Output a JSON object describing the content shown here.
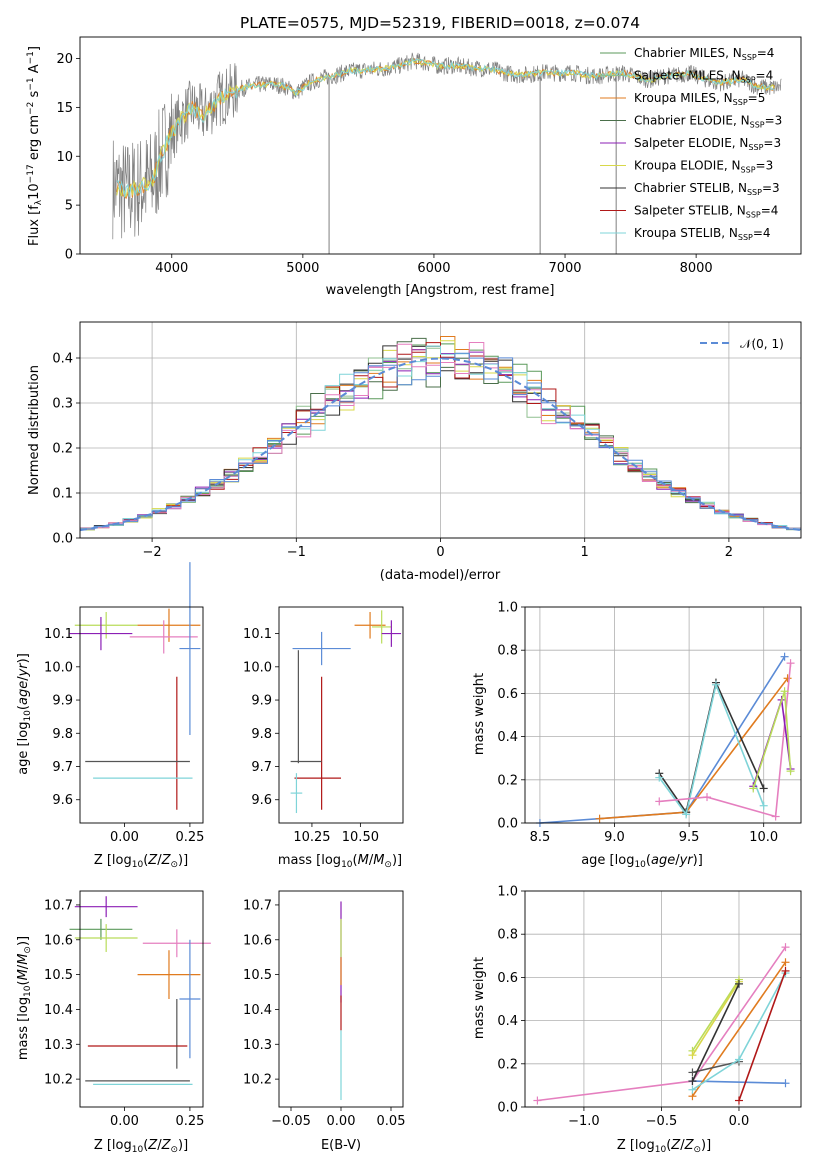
{
  "chart_data": [
    {
      "type": "line",
      "title": "PLATE=0575, MJD=52319, FIBERID=0018, z=0.074",
      "xlabel": "wavelength [Angstrom, rest frame]",
      "ylabel": "Flux [f$_\\lambda$10$^{-17}$ erg cm$^{-2}$ s$^{-1}$ A$^{-1}$]",
      "ylabel_parts": [
        "Flux [f",
        "λ",
        "10",
        "−17",
        " erg cm",
        "−2",
        " s",
        "−1",
        " A",
        "−1",
        "]"
      ],
      "xlim": [
        3300,
        8800
      ],
      "ylim": [
        0,
        22.2
      ],
      "xticks": [
        4000,
        5000,
        6000,
        7000,
        8000
      ],
      "yticks": [
        0,
        5,
        10,
        15,
        20
      ],
      "legend_position": "upper right",
      "legend": [
        {
          "main": "Chabrier MILES, N",
          "sub": "SSP",
          "tail": "=4",
          "color": "#5b9a5b"
        },
        {
          "main": "Salpeter MILES, N",
          "sub": "SSP",
          "tail": "=4",
          "color": "#8fbf8f"
        },
        {
          "main": "Kroupa MILES, N",
          "sub": "SSP",
          "tail": "=5",
          "color": "#e07b1f"
        },
        {
          "main": "Chabrier ELODIE, N",
          "sub": "SSP",
          "tail": "=3",
          "color": "#4a6f4a"
        },
        {
          "main": "Salpeter ELODIE, N",
          "sub": "SSP",
          "tail": "=3",
          "color": "#8b1fb5"
        },
        {
          "main": "Kroupa ELODIE, N",
          "sub": "SSP",
          "tail": "=3",
          "color": "#d8d84a"
        },
        {
          "main": "Chabrier STELIB, N",
          "sub": "SSP",
          "tail": "=3",
          "color": "#333333"
        },
        {
          "main": "Salpeter STELIB, N",
          "sub": "SSP",
          "tail": "=4",
          "color": "#b01818"
        },
        {
          "main": "Kroupa STELIB, N",
          "sub": "SSP",
          "tail": "=4",
          "color": "#7fd4d8"
        }
      ],
      "spectrum_envelope": {
        "x": [
          3550,
          3650,
          3750,
          3850,
          3950,
          4050,
          4150,
          4250,
          4350,
          4450,
          4550,
          4650,
          4750,
          4850,
          4950,
          5050,
          5150,
          5250,
          5350,
          5450,
          5550,
          5650,
          5750,
          5850,
          5950,
          6050,
          6150,
          6250,
          6350,
          6450,
          6550,
          6650,
          6750,
          6850,
          6950,
          7050,
          7150,
          7250,
          7350,
          7450,
          7550,
          7650,
          7750,
          7850,
          7950,
          8050,
          8150,
          8250,
          8350,
          8450,
          8550,
          8650
        ],
        "y": [
          7.0,
          6.3,
          6.8,
          7.5,
          11.0,
          13.5,
          15.0,
          14.2,
          15.8,
          16.5,
          17.0,
          17.3,
          17.4,
          17.2,
          16.5,
          17.5,
          18.0,
          18.3,
          18.7,
          18.8,
          18.9,
          19.0,
          19.3,
          19.8,
          19.5,
          19.2,
          19.3,
          19.1,
          19.0,
          18.9,
          18.5,
          18.3,
          18.4,
          18.6,
          18.5,
          18.6,
          18.3,
          18.2,
          18.4,
          18.5,
          18.1,
          17.8,
          18.2,
          18.3,
          18.5,
          18.0,
          17.5,
          17.6,
          17.9,
          17.2,
          17.0,
          17.1
        ]
      }
    },
    {
      "type": "line",
      "xlabel": "(data-model)/error",
      "ylabel": "Normed distribution",
      "xlim": [
        -2.5,
        2.5
      ],
      "ylim": [
        0,
        0.48
      ],
      "xticks": [
        -2,
        -1,
        0,
        1,
        2
      ],
      "yticks": [
        0.0,
        0.1,
        0.2,
        0.3,
        0.4
      ],
      "grid": true,
      "legend_position": "upper right",
      "legend": [
        {
          "name": "𝒩(0, 1)",
          "color": "#5b8bd6"
        }
      ],
      "histogram_bin_width": 0.1
    },
    {
      "type": "scatter",
      "xlabel": "Z [log$_{10}$(Z/Z$_\\odot$)]",
      "ylabel": "age [log$_{10}$(age/yr)]",
      "xlim": [
        -0.17,
        0.3
      ],
      "ylim": [
        9.53,
        10.18
      ],
      "xticks": [
        0.0,
        0.25
      ],
      "yticks": [
        9.6,
        9.7,
        9.8,
        9.9,
        10.0,
        10.1
      ],
      "errorbars": [
        {
          "x": -0.07,
          "xerr": 0.12,
          "y": 10.125,
          "yerr": 0.04,
          "color": "#b9dc5a"
        },
        {
          "x": -0.09,
          "xerr": 0.12,
          "y": 10.1,
          "yerr": 0.05,
          "color": "#8b1fb5"
        },
        {
          "x": 0.17,
          "xerr": 0.12,
          "y": 10.125,
          "yerr": 0.05,
          "color": "#e07b1f"
        },
        {
          "x": 0.15,
          "xerr": 0.13,
          "y": 10.09,
          "yerr": 0.05,
          "color": "#e57fbf"
        },
        {
          "x": 0.25,
          "xerr": 0.04,
          "y": 10.055,
          "yerr": 0.26,
          "color": "#5b8bd6"
        },
        {
          "x": 0.2,
          "xerr": 0.0,
          "y": 9.77,
          "yerr": 0.2,
          "color": "#b01818"
        },
        {
          "x": 0.05,
          "xerr": 0.2,
          "y": 9.715,
          "yerr": 0.0,
          "color": "#555555"
        },
        {
          "x": 0.07,
          "xerr": 0.19,
          "y": 9.665,
          "yerr": 0.0,
          "color": "#7fd4d8"
        }
      ]
    },
    {
      "type": "scatter",
      "xlabel": "mass [log$_{10}$(M/M$_\\odot$)]",
      "xlim": [
        10.08,
        10.72
      ],
      "ylim": [
        9.53,
        10.18
      ],
      "xticks": [
        10.25,
        10.5
      ],
      "yticks": [
        9.6,
        9.7,
        9.8,
        9.9,
        10.0,
        10.1
      ],
      "errorbars": [
        {
          "x": 10.55,
          "xerr": 0.08,
          "y": 10.125,
          "yerr": 0.04,
          "color": "#e07b1f"
        },
        {
          "x": 10.61,
          "xerr": 0.05,
          "y": 10.12,
          "yerr": 0.05,
          "color": "#b9dc5a"
        },
        {
          "x": 10.66,
          "xerr": 0.05,
          "y": 10.1,
          "yerr": 0.04,
          "color": "#8b1fb5"
        },
        {
          "x": 10.3,
          "xerr": 0.15,
          "y": 10.055,
          "yerr": 0.05,
          "color": "#5b8bd6"
        },
        {
          "x": 10.18,
          "xerr": 0.0,
          "y": 9.88,
          "yerr": 0.17,
          "color": "#555555"
        },
        {
          "x": 10.3,
          "xerr": 0.0,
          "y": 9.77,
          "yerr": 0.2,
          "color": "#b01818"
        },
        {
          "x": 10.22,
          "xerr": 0.08,
          "y": 9.715,
          "yerr": 0.0,
          "color": "#555555"
        },
        {
          "x": 10.28,
          "xerr": 0.12,
          "y": 9.665,
          "yerr": 0.0,
          "color": "#b01818"
        },
        {
          "x": 10.17,
          "xerr": 0.03,
          "y": 9.62,
          "yerr": 0.06,
          "color": "#7fd4d8"
        }
      ]
    },
    {
      "type": "line",
      "xlabel": "age [log$_{10}$(age/yr)]",
      "ylabel": "mass weight",
      "xlim": [
        8.4,
        10.25
      ],
      "ylim": [
        0,
        1
      ],
      "xticks": [
        8.5,
        9.0,
        9.5,
        10.0
      ],
      "yticks": [
        0.0,
        0.2,
        0.4,
        0.6,
        0.8,
        1.0
      ],
      "grid": true,
      "series": [
        {
          "color": "#5b8bd6",
          "x": [
            8.5,
            9.48,
            10.14
          ],
          "y": [
            0.0,
            0.05,
            0.77
          ]
        },
        {
          "color": "#e07b1f",
          "x": [
            8.9,
            9.48,
            10.16
          ],
          "y": [
            0.02,
            0.05,
            0.67
          ]
        },
        {
          "color": "#333333",
          "x": [
            9.3,
            9.48,
            9.68,
            10.0
          ],
          "y": [
            0.23,
            0.05,
            0.65,
            0.16
          ]
        },
        {
          "color": "#7fd4d8",
          "x": [
            9.3,
            9.48,
            9.68,
            10.0
          ],
          "y": [
            0.21,
            0.04,
            0.64,
            0.08
          ]
        },
        {
          "color": "#e57fbf",
          "x": [
            9.3,
            9.62,
            10.08,
            10.18
          ],
          "y": [
            0.1,
            0.12,
            0.03,
            0.74
          ]
        },
        {
          "color": "#8b1fb5",
          "x": [
            9.93,
            10.12,
            10.18
          ],
          "y": [
            0.17,
            0.57,
            0.25
          ]
        },
        {
          "color": "#b9dc5a",
          "x": [
            9.93,
            10.14,
            10.18
          ],
          "y": [
            0.16,
            0.61,
            0.24
          ]
        }
      ]
    },
    {
      "type": "scatter",
      "xlabel": "Z [log$_{10}$(Z/Z$_\\odot$)]",
      "ylabel": "mass [log$_{10}$(M/M$_\\odot$)]",
      "xlim": [
        -0.17,
        0.3
      ],
      "ylim": [
        10.12,
        10.74
      ],
      "xticks": [
        0.0,
        0.25
      ],
      "yticks": [
        10.2,
        10.3,
        10.4,
        10.5,
        10.6,
        10.7
      ],
      "errorbars": [
        {
          "x": -0.07,
          "xerr": 0.12,
          "y": 10.695,
          "yerr": 0.03,
          "color": "#8b1fb5"
        },
        {
          "x": -0.09,
          "xerr": 0.12,
          "y": 10.63,
          "yerr": 0.03,
          "color": "#5b9a5b"
        },
        {
          "x": -0.07,
          "xerr": 0.12,
          "y": 10.605,
          "yerr": 0.04,
          "color": "#b9dc5a"
        },
        {
          "x": 0.2,
          "xerr": 0.13,
          "y": 10.59,
          "yerr": 0.04,
          "color": "#e57fbf"
        },
        {
          "x": 0.17,
          "xerr": 0.12,
          "y": 10.5,
          "yerr": 0.07,
          "color": "#e07b1f"
        },
        {
          "x": 0.25,
          "xerr": 0.04,
          "y": 10.43,
          "yerr": 0.17,
          "color": "#5b8bd6"
        },
        {
          "x": 0.2,
          "xerr": 0.0,
          "y": 10.33,
          "yerr": 0.1,
          "color": "#555555"
        },
        {
          "x": 0.05,
          "xerr": 0.19,
          "y": 10.295,
          "yerr": 0.0,
          "color": "#b01818"
        },
        {
          "x": 0.05,
          "xerr": 0.2,
          "y": 10.195,
          "yerr": 0.0,
          "color": "#555555"
        },
        {
          "x": 0.07,
          "xerr": 0.19,
          "y": 10.185,
          "yerr": 0.0,
          "color": "#7fd4d8"
        }
      ]
    },
    {
      "type": "scatter",
      "xlabel": "E(B-V)",
      "xlim": [
        -0.062,
        0.062
      ],
      "ylim": [
        10.12,
        10.74
      ],
      "xticks": [
        -0.05,
        0.0,
        0.05
      ],
      "yticks": [
        10.2,
        10.3,
        10.4,
        10.5,
        10.6,
        10.7
      ],
      "errorbars": [
        {
          "x": 0.0,
          "y1": 10.42,
          "y2": 10.71,
          "color": "#8b1fb5"
        },
        {
          "x": 0.0,
          "y1": 10.55,
          "y2": 10.66,
          "color": "#b9dc5a"
        },
        {
          "x": 0.0,
          "y1": 10.47,
          "y2": 10.55,
          "color": "#e07b1f"
        },
        {
          "x": 0.0,
          "y1": 10.34,
          "y2": 10.44,
          "color": "#b01818"
        },
        {
          "x": 0.0,
          "y1": 10.14,
          "y2": 10.34,
          "color": "#7fd4d8"
        }
      ]
    },
    {
      "type": "line",
      "xlabel": "Z [log$_{10}$(Z/Z$_\\odot$)]",
      "ylabel": "mass weight",
      "xlim": [
        -1.38,
        0.4
      ],
      "ylim": [
        0,
        1
      ],
      "xticks": [
        -1.0,
        -0.5,
        0.0
      ],
      "yticks": [
        0.0,
        0.2,
        0.4,
        0.6,
        0.8,
        1.0
      ],
      "grid": true,
      "series": [
        {
          "color": "#e57fbf",
          "x": [
            -1.3,
            -0.3,
            0.3
          ],
          "y": [
            0.03,
            0.12,
            0.74
          ]
        },
        {
          "color": "#5b8bd6",
          "x": [
            -0.3,
            0.3
          ],
          "y": [
            0.12,
            0.11
          ]
        },
        {
          "color": "#e07b1f",
          "x": [
            -0.3,
            0.3
          ],
          "y": [
            0.05,
            0.67
          ]
        },
        {
          "color": "#b9dc5a",
          "x": [
            -0.3,
            0.0
          ],
          "y": [
            0.26,
            0.59
          ]
        },
        {
          "color": "#d8d84a",
          "x": [
            -0.3,
            0.0
          ],
          "y": [
            0.24,
            0.58
          ]
        },
        {
          "color": "#555555",
          "x": [
            -0.3,
            0.0
          ],
          "y": [
            0.16,
            0.21
          ]
        },
        {
          "color": "#7fd4d8",
          "x": [
            -0.3,
            0.0,
            0.3
          ],
          "y": [
            0.08,
            0.22,
            0.62
          ]
        },
        {
          "color": "#b01818",
          "x": [
            0.0,
            0.3
          ],
          "y": [
            0.03,
            0.63
          ]
        },
        {
          "color": "#333333",
          "x": [
            -0.3,
            0.0
          ],
          "y": [
            0.12,
            0.57
          ]
        }
      ]
    }
  ]
}
